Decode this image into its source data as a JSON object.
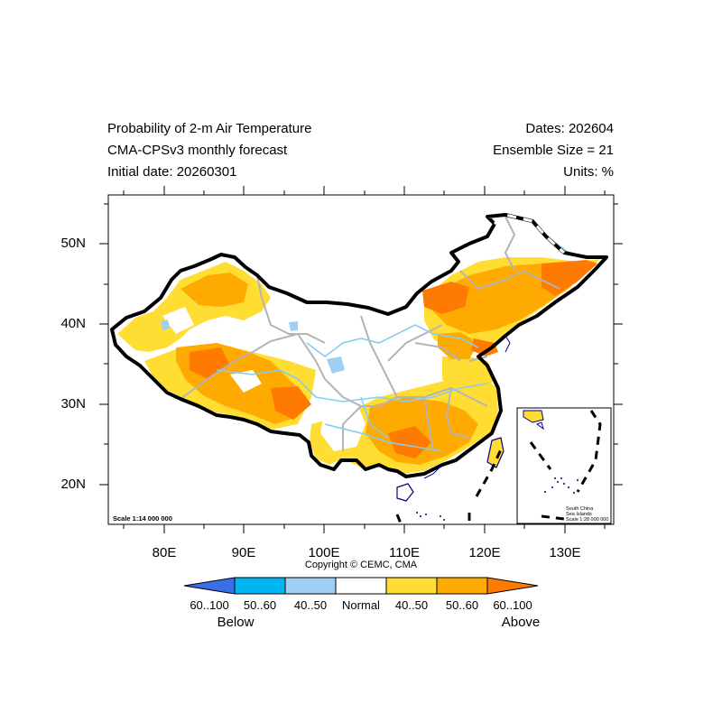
{
  "header": {
    "title_line1": "Probability of 2-m Air Temperature",
    "title_line2": "CMA-CPSv3 monthly forecast",
    "title_line3": "Initial date: 20260301",
    "right_line1": "Dates: 202604",
    "right_line2": "Ensemble Size = 21",
    "right_line3": "Units: %"
  },
  "map": {
    "scale_text": "Scale 1:14 000 000",
    "inset_title_1": "South China",
    "inset_title_2": "Sea Islands",
    "inset_scale": "Scale 1:28 000 000",
    "lat_labels": [
      "50N",
      "40N",
      "30N",
      "20N"
    ],
    "lon_labels": [
      "80E",
      "90E",
      "100E",
      "110E",
      "120E",
      "130E"
    ],
    "copyright": "Copyright © CEMC, CMA"
  },
  "colorbar": {
    "labels": [
      "60..100",
      "50..60",
      "40..50",
      "Normal",
      "40..50",
      "50..60",
      "60..100"
    ],
    "below": "Below",
    "above": "Above",
    "colors": [
      "#3a6ee6",
      "#00b4f0",
      "#a0cff5",
      "#ffffff",
      "#ffdd33",
      "#ffaa00",
      "#ff7a00"
    ]
  }
}
